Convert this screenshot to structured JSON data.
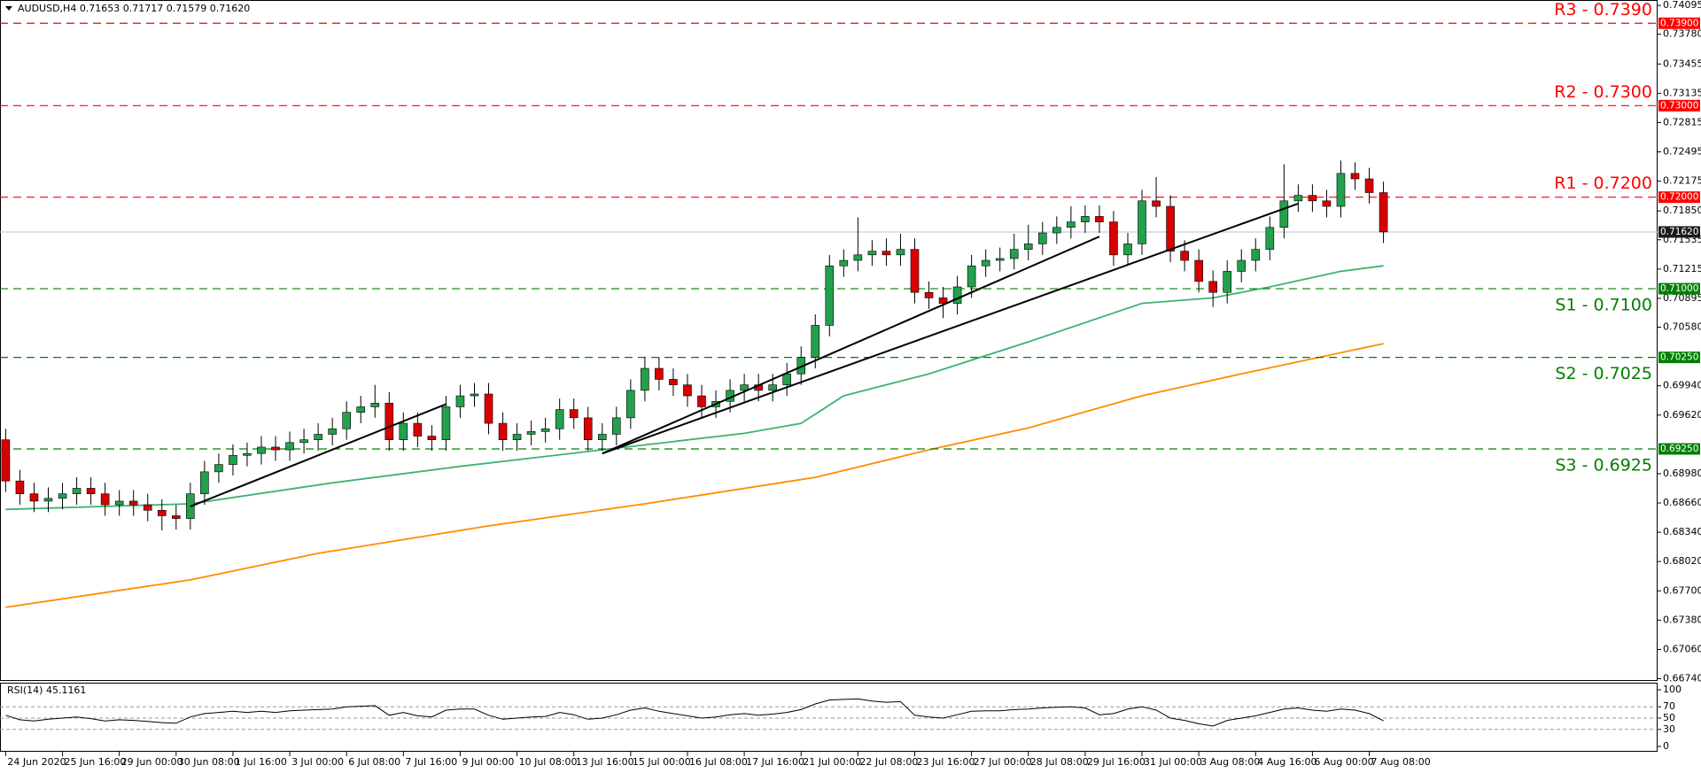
{
  "chart_data": {
    "type": "candlestick",
    "title": "AUDUSD,H4  0.71653 0.71717 0.71579 0.71620",
    "up_color": "#22a04c",
    "down_color": "#d80000",
    "wick_color": "#000000",
    "open": [
      0.6935,
      0.689,
      0.6876,
      0.6868,
      0.6871,
      0.6876,
      0.6882,
      0.6876,
      0.6864,
      0.6868,
      0.6864,
      0.6858,
      0.6852,
      0.6849,
      0.6876,
      0.69,
      0.6908,
      0.6918,
      0.692,
      0.6927,
      0.6924,
      0.6932,
      0.6935,
      0.6941,
      0.6947,
      0.6965,
      0.6971,
      0.6975,
      0.6935,
      0.6953,
      0.6939,
      0.6935,
      0.6971,
      0.6983,
      0.6985,
      0.6953,
      0.6935,
      0.6941,
      0.6944,
      0.6947,
      0.6968,
      0.6959,
      0.6935,
      0.6941,
      0.6959,
      0.6989,
      0.7013,
      0.7001,
      0.6995,
      0.6983,
      0.6971,
      0.6977,
      0.6989,
      0.6995,
      0.6989,
      0.6995,
      0.7007,
      0.7025,
      0.706,
      0.7125,
      0.7131,
      0.7137,
      0.7141,
      0.7137,
      0.7143,
      0.7096,
      0.709,
      0.7084,
      0.7102,
      0.7125,
      0.7131,
      0.7133,
      0.7143,
      0.7149,
      0.7161,
      0.7167,
      0.7173,
      0.7179,
      0.7173,
      0.7137,
      0.7149,
      0.7196,
      0.719,
      0.7141,
      0.7131,
      0.7108,
      0.7096,
      0.7119,
      0.7131,
      0.7143,
      0.7167,
      0.7196,
      0.7202,
      0.7196,
      0.719,
      0.7226,
      0.722,
      0.7205
    ],
    "high": [
      0.6947,
      0.6902,
      0.6888,
      0.6883,
      0.6888,
      0.6894,
      0.6894,
      0.6888,
      0.688,
      0.688,
      0.6876,
      0.687,
      0.6864,
      0.6888,
      0.6912,
      0.692,
      0.693,
      0.6932,
      0.6939,
      0.6939,
      0.6944,
      0.6947,
      0.6953,
      0.6959,
      0.6977,
      0.6983,
      0.6995,
      0.6987,
      0.6965,
      0.6965,
      0.6951,
      0.6983,
      0.6995,
      0.6997,
      0.6997,
      0.6965,
      0.6953,
      0.6956,
      0.6959,
      0.698,
      0.698,
      0.6971,
      0.6953,
      0.6971,
      0.7001,
      0.7025,
      0.7025,
      0.7013,
      0.7007,
      0.6995,
      0.6989,
      0.7001,
      0.7007,
      0.7007,
      0.7007,
      0.7019,
      0.7037,
      0.7072,
      0.7137,
      0.7143,
      0.7178,
      0.7153,
      0.7155,
      0.716,
      0.7155,
      0.7108,
      0.7102,
      0.7114,
      0.7137,
      0.7143,
      0.7145,
      0.716,
      0.717,
      0.7173,
      0.7179,
      0.719,
      0.7191,
      0.7191,
      0.7185,
      0.7161,
      0.7208,
      0.7222,
      0.7202,
      0.7153,
      0.7143,
      0.712,
      0.7131,
      0.7143,
      0.7155,
      0.7179,
      0.7236,
      0.7214,
      0.7214,
      0.7208,
      0.724,
      0.7238,
      0.7232,
      0.7217
    ],
    "low": [
      0.6878,
      0.6864,
      0.6856,
      0.6856,
      0.6859,
      0.6864,
      0.6864,
      0.6852,
      0.6852,
      0.6852,
      0.6846,
      0.6836,
      0.6837,
      0.6837,
      0.6864,
      0.6888,
      0.6896,
      0.6906,
      0.6908,
      0.6912,
      0.6912,
      0.692,
      0.6923,
      0.6929,
      0.6935,
      0.6953,
      0.6959,
      0.6923,
      0.6923,
      0.6927,
      0.6923,
      0.6923,
      0.6959,
      0.6971,
      0.6941,
      0.6923,
      0.6923,
      0.6929,
      0.6932,
      0.6935,
      0.6947,
      0.6923,
      0.6923,
      0.6929,
      0.6947,
      0.6977,
      0.6989,
      0.6983,
      0.6971,
      0.6959,
      0.6959,
      0.6965,
      0.6977,
      0.6977,
      0.6977,
      0.6983,
      0.6995,
      0.7013,
      0.7048,
      0.7113,
      0.7119,
      0.7125,
      0.7125,
      0.7125,
      0.7084,
      0.7078,
      0.7068,
      0.7072,
      0.709,
      0.7113,
      0.7119,
      0.7121,
      0.7131,
      0.7137,
      0.7149,
      0.7155,
      0.7161,
      0.7161,
      0.7125,
      0.7125,
      0.7137,
      0.7178,
      0.7129,
      0.7119,
      0.7096,
      0.708,
      0.7084,
      0.7107,
      0.7119,
      0.7131,
      0.7155,
      0.7184,
      0.7184,
      0.7178,
      0.7178,
      0.7208,
      0.7193,
      0.715
    ],
    "close": [
      0.689,
      0.6876,
      0.6868,
      0.6871,
      0.6876,
      0.6882,
      0.6876,
      0.6864,
      0.6868,
      0.6864,
      0.6858,
      0.6852,
      0.6849,
      0.6876,
      0.69,
      0.6908,
      0.6918,
      0.692,
      0.6927,
      0.6924,
      0.6932,
      0.6935,
      0.6941,
      0.6947,
      0.6965,
      0.6971,
      0.6975,
      0.6935,
      0.6953,
      0.6939,
      0.6935,
      0.6971,
      0.6983,
      0.6985,
      0.6953,
      0.6935,
      0.6941,
      0.6944,
      0.6947,
      0.6968,
      0.6959,
      0.6935,
      0.6941,
      0.6959,
      0.6989,
      0.7013,
      0.7001,
      0.6995,
      0.6983,
      0.6971,
      0.6977,
      0.6989,
      0.6995,
      0.6989,
      0.6995,
      0.7007,
      0.7025,
      0.706,
      0.7125,
      0.7131,
      0.7137,
      0.7141,
      0.7137,
      0.7143,
      0.7096,
      0.709,
      0.7084,
      0.7102,
      0.7125,
      0.7131,
      0.7133,
      0.7143,
      0.7149,
      0.7161,
      0.7167,
      0.7173,
      0.7179,
      0.7173,
      0.7137,
      0.7149,
      0.7196,
      0.719,
      0.7141,
      0.7131,
      0.7108,
      0.7096,
      0.7119,
      0.7131,
      0.7143,
      0.7167,
      0.7196,
      0.7202,
      0.7196,
      0.719,
      0.7226,
      0.722,
      0.7205,
      0.7162
    ],
    "xlim": [
      -0.4,
      116.3
    ],
    "xticks": [
      {
        "value": 0,
        "label": "24 Jun 2020"
      },
      {
        "value": 4,
        "label": "25 Jun 16:00"
      },
      {
        "value": 8,
        "label": "29 Jun 00:00"
      },
      {
        "value": 12,
        "label": "30 Jun 08:00"
      },
      {
        "value": 16,
        "label": "1 Jul 16:00"
      },
      {
        "value": 20,
        "label": "3 Jul 00:00"
      },
      {
        "value": 24,
        "label": "6 Jul 08:00"
      },
      {
        "value": 28,
        "label": "7 Jul 16:00"
      },
      {
        "value": 32,
        "label": "9 Jul 00:00"
      },
      {
        "value": 36,
        "label": "10 Jul 08:00"
      },
      {
        "value": 40,
        "label": "13 Jul 16:00"
      },
      {
        "value": 44,
        "label": "15 Jul 00:00"
      },
      {
        "value": 48,
        "label": "16 Jul 08:00"
      },
      {
        "value": 52,
        "label": "17 Jul 16:00"
      },
      {
        "value": 56,
        "label": "21 Jul 00:00"
      },
      {
        "value": 60,
        "label": "22 Jul 08:00"
      },
      {
        "value": 64,
        "label": "23 Jul 16:00"
      },
      {
        "value": 68,
        "label": "27 Jul 00:00"
      },
      {
        "value": 72,
        "label": "28 Jul 08:00"
      },
      {
        "value": 76,
        "label": "29 Jul 16:00"
      },
      {
        "value": 80,
        "label": "31 Jul 00:00"
      },
      {
        "value": 84,
        "label": "3 Aug 08:00"
      },
      {
        "value": 88,
        "label": "4 Aug 16:00"
      },
      {
        "value": 92,
        "label": "6 Aug 00:00"
      },
      {
        "value": 96,
        "label": "7 Aug 08:00"
      }
    ],
    "ylim": [
      0.66716,
      0.74154
    ],
    "yticks": [
      0.74095,
      {
        "value": 0.7378,
        "label": "0.73780"
      },
      0.73455,
      0.73135,
      0.72815,
      0.72495,
      0.72175,
      {
        "value": 0.7185,
        "label": "0.71850"
      },
      0.71535,
      0.71215,
      0.70895,
      {
        "value": 0.7058,
        "label": "0.70580"
      },
      {
        "value": 0.6994,
        "label": "0.69940"
      },
      {
        "value": 0.6962,
        "label": "0.69620"
      },
      {
        "value": 0.6898,
        "label": "0.68980"
      },
      {
        "value": 0.6866,
        "label": "0.68660"
      },
      {
        "value": 0.6834,
        "label": "0.68340"
      },
      {
        "value": 0.6802,
        "label": "0.68020"
      },
      {
        "value": 0.677,
        "label": "0.67700"
      },
      {
        "value": 0.6738,
        "label": "0.67380"
      },
      {
        "value": 0.6706,
        "label": "0.67060"
      },
      {
        "value": 0.6674,
        "label": "0.66740"
      }
    ],
    "moving_averages": [
      {
        "color": "#3cb371",
        "x": [
          0,
          13,
          23,
          32,
          42,
          52,
          56,
          59,
          65,
          72,
          80,
          85,
          89,
          94,
          97
        ],
        "values": [
          0.6859,
          0.6865,
          0.6888,
          0.6906,
          0.6924,
          0.6942,
          0.6953,
          0.6983,
          0.7007,
          0.7042,
          0.7084,
          0.709,
          0.7102,
          0.7119,
          0.7125
        ]
      },
      {
        "color": "#ff8c00",
        "x": [
          0,
          13,
          22,
          34,
          45,
          57,
          65,
          72,
          80,
          87,
          97
        ],
        "values": [
          0.6752,
          0.6782,
          0.6811,
          0.6841,
          0.6865,
          0.6894,
          0.6924,
          0.6948,
          0.6983,
          0.7007,
          0.704
        ]
      }
    ],
    "trendlines": [
      {
        "color": "#000000",
        "x": [
          13,
          31
        ],
        "values": [
          0.6862,
          0.6974
        ]
      },
      {
        "color": "#000000",
        "x": [
          42,
          77
        ],
        "values": [
          0.692,
          0.7157
        ]
      },
      {
        "color": "#000000",
        "x": [
          42,
          91
        ],
        "values": [
          0.692,
          0.7193
        ]
      }
    ],
    "levels": [
      {
        "label": "R3 - 0.7390",
        "value": 0.739,
        "value_label": "0.73900",
        "color": "#ff0000"
      },
      {
        "label": "R2 - 0.7300",
        "value": 0.73,
        "value_label": "0.73000",
        "color": "#ff0000"
      },
      {
        "label": "R1 - 0.7200",
        "value": 0.72,
        "value_label": "0.72000",
        "color": "#ff0000"
      },
      {
        "label": "S1 - 0.7100",
        "value": 0.71,
        "value_label": "0.71000",
        "color": "#008000"
      },
      {
        "label": "S2 - 0.7025",
        "value": 0.7025,
        "value_label": "0.70250",
        "color": "#008000"
      },
      {
        "label": "S3 - 0.6925",
        "value": 0.6925,
        "value_label": "0.69250",
        "color": "#008000"
      }
    ],
    "current_price": {
      "value": 0.7162,
      "value_label": "0.71620",
      "color": "#b0c4de",
      "box_color": "#1a1a1a"
    },
    "indicator": {
      "type": "line",
      "title": "RSI(14) 45.1161",
      "color": "#000000",
      "values": [
        55,
        47,
        45,
        48,
        50,
        52,
        49,
        45,
        47,
        46,
        44,
        42,
        41,
        52,
        58,
        60,
        62,
        60,
        62,
        60,
        63,
        64,
        65,
        66,
        70,
        71,
        72,
        55,
        60,
        54,
        52,
        64,
        66,
        66,
        55,
        48,
        50,
        52,
        53,
        60,
        56,
        48,
        50,
        56,
        64,
        68,
        62,
        58,
        54,
        50,
        52,
        56,
        58,
        55,
        57,
        60,
        65,
        75,
        82,
        83,
        84,
        80,
        78,
        79,
        55,
        52,
        50,
        56,
        62,
        63,
        63,
        65,
        66,
        68,
        69,
        70,
        68,
        56,
        58,
        66,
        70,
        64,
        50,
        46,
        40,
        36,
        46,
        50,
        54,
        60,
        66,
        68,
        64,
        62,
        66,
        64,
        58,
        45.1161
      ],
      "ylim": [
        0,
        100
      ],
      "yticks": [
        100,
        70,
        50,
        30,
        0
      ],
      "levels": [
        70,
        50,
        30
      ]
    }
  }
}
